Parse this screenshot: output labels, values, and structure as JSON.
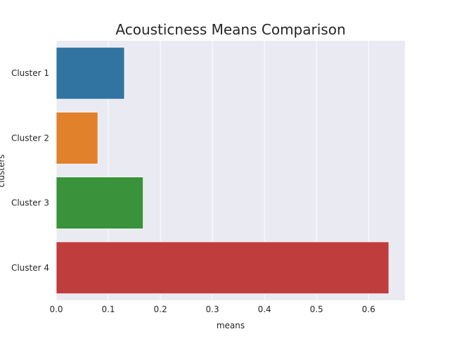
{
  "chart_data": {
    "type": "bar",
    "orientation": "horizontal",
    "title": "Acousticness Means Comparison",
    "xlabel": "means",
    "ylabel": "clusters",
    "categories": [
      "Cluster 1",
      "Cluster 2",
      "Cluster 3",
      "Cluster 4"
    ],
    "values": [
      0.131,
      0.08,
      0.167,
      0.639
    ],
    "colors": [
      "#3274a1",
      "#e1812c",
      "#3a923a",
      "#c03d3e"
    ],
    "xlim": [
      0,
      0.67
    ],
    "xticks": [
      0.0,
      0.1,
      0.2,
      0.3,
      0.4,
      0.5,
      0.6
    ],
    "xtick_labels": [
      "0.0",
      "0.1",
      "0.2",
      "0.3",
      "0.4",
      "0.5",
      "0.6"
    ],
    "grid": true,
    "grid_axis": "x",
    "plot_background": "#eaeaf2",
    "grid_color": "#ffffff"
  }
}
